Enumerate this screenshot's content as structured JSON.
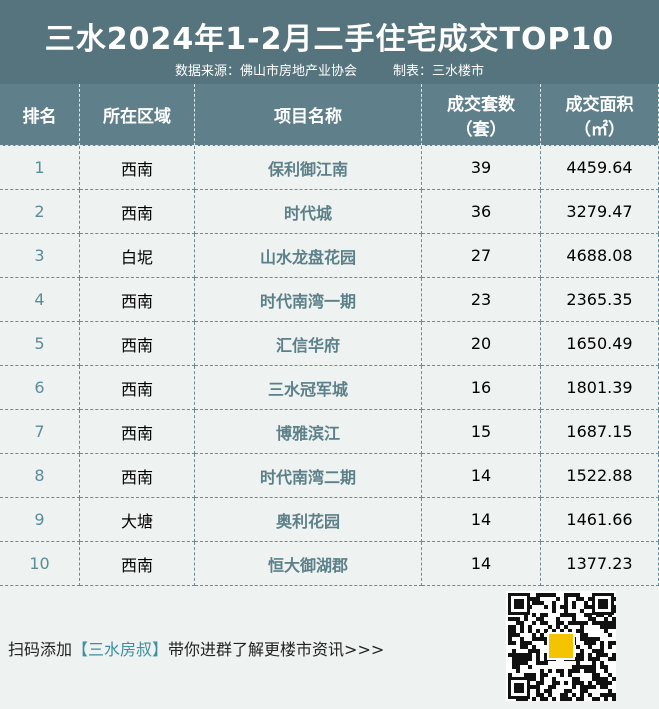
{
  "header": {
    "title": "三水2024年1-2月二手住宅成交TOP10",
    "source": "数据来源：佛山市房地产业协会",
    "maker": "制表：三水楼市"
  },
  "table": {
    "columns": [
      [
        "排名"
      ],
      [
        "所在区域"
      ],
      [
        "项目名称"
      ],
      [
        "成交套数",
        "（套）"
      ],
      [
        "成交面积",
        "（㎡）"
      ]
    ],
    "rows": [
      [
        1,
        "西南",
        "保利御江南",
        39,
        4459.64
      ],
      [
        2,
        "西南",
        "时代城",
        36,
        3279.47
      ],
      [
        3,
        "白坭",
        "山水龙盘花园",
        27,
        4688.08
      ],
      [
        4,
        "西南",
        "时代南湾一期",
        23,
        2365.35
      ],
      [
        5,
        "西南",
        "汇信华府",
        20,
        1650.49
      ],
      [
        6,
        "西南",
        "三水冠军城",
        16,
        1801.39
      ],
      [
        7,
        "西南",
        "博雅滨江",
        15,
        1687.15
      ],
      [
        8,
        "西南",
        "时代南湾二期",
        14,
        1522.88
      ],
      [
        9,
        "大塘",
        "奥利花园",
        14,
        1461.66
      ],
      [
        10,
        "西南",
        "恒大御湖郡",
        14,
        1377.23
      ]
    ]
  },
  "footer": {
    "prefix": "扫码添加",
    "highlight": "【三水房叔】",
    "suffix": "带你进群了解更楼市资讯>>>"
  }
}
